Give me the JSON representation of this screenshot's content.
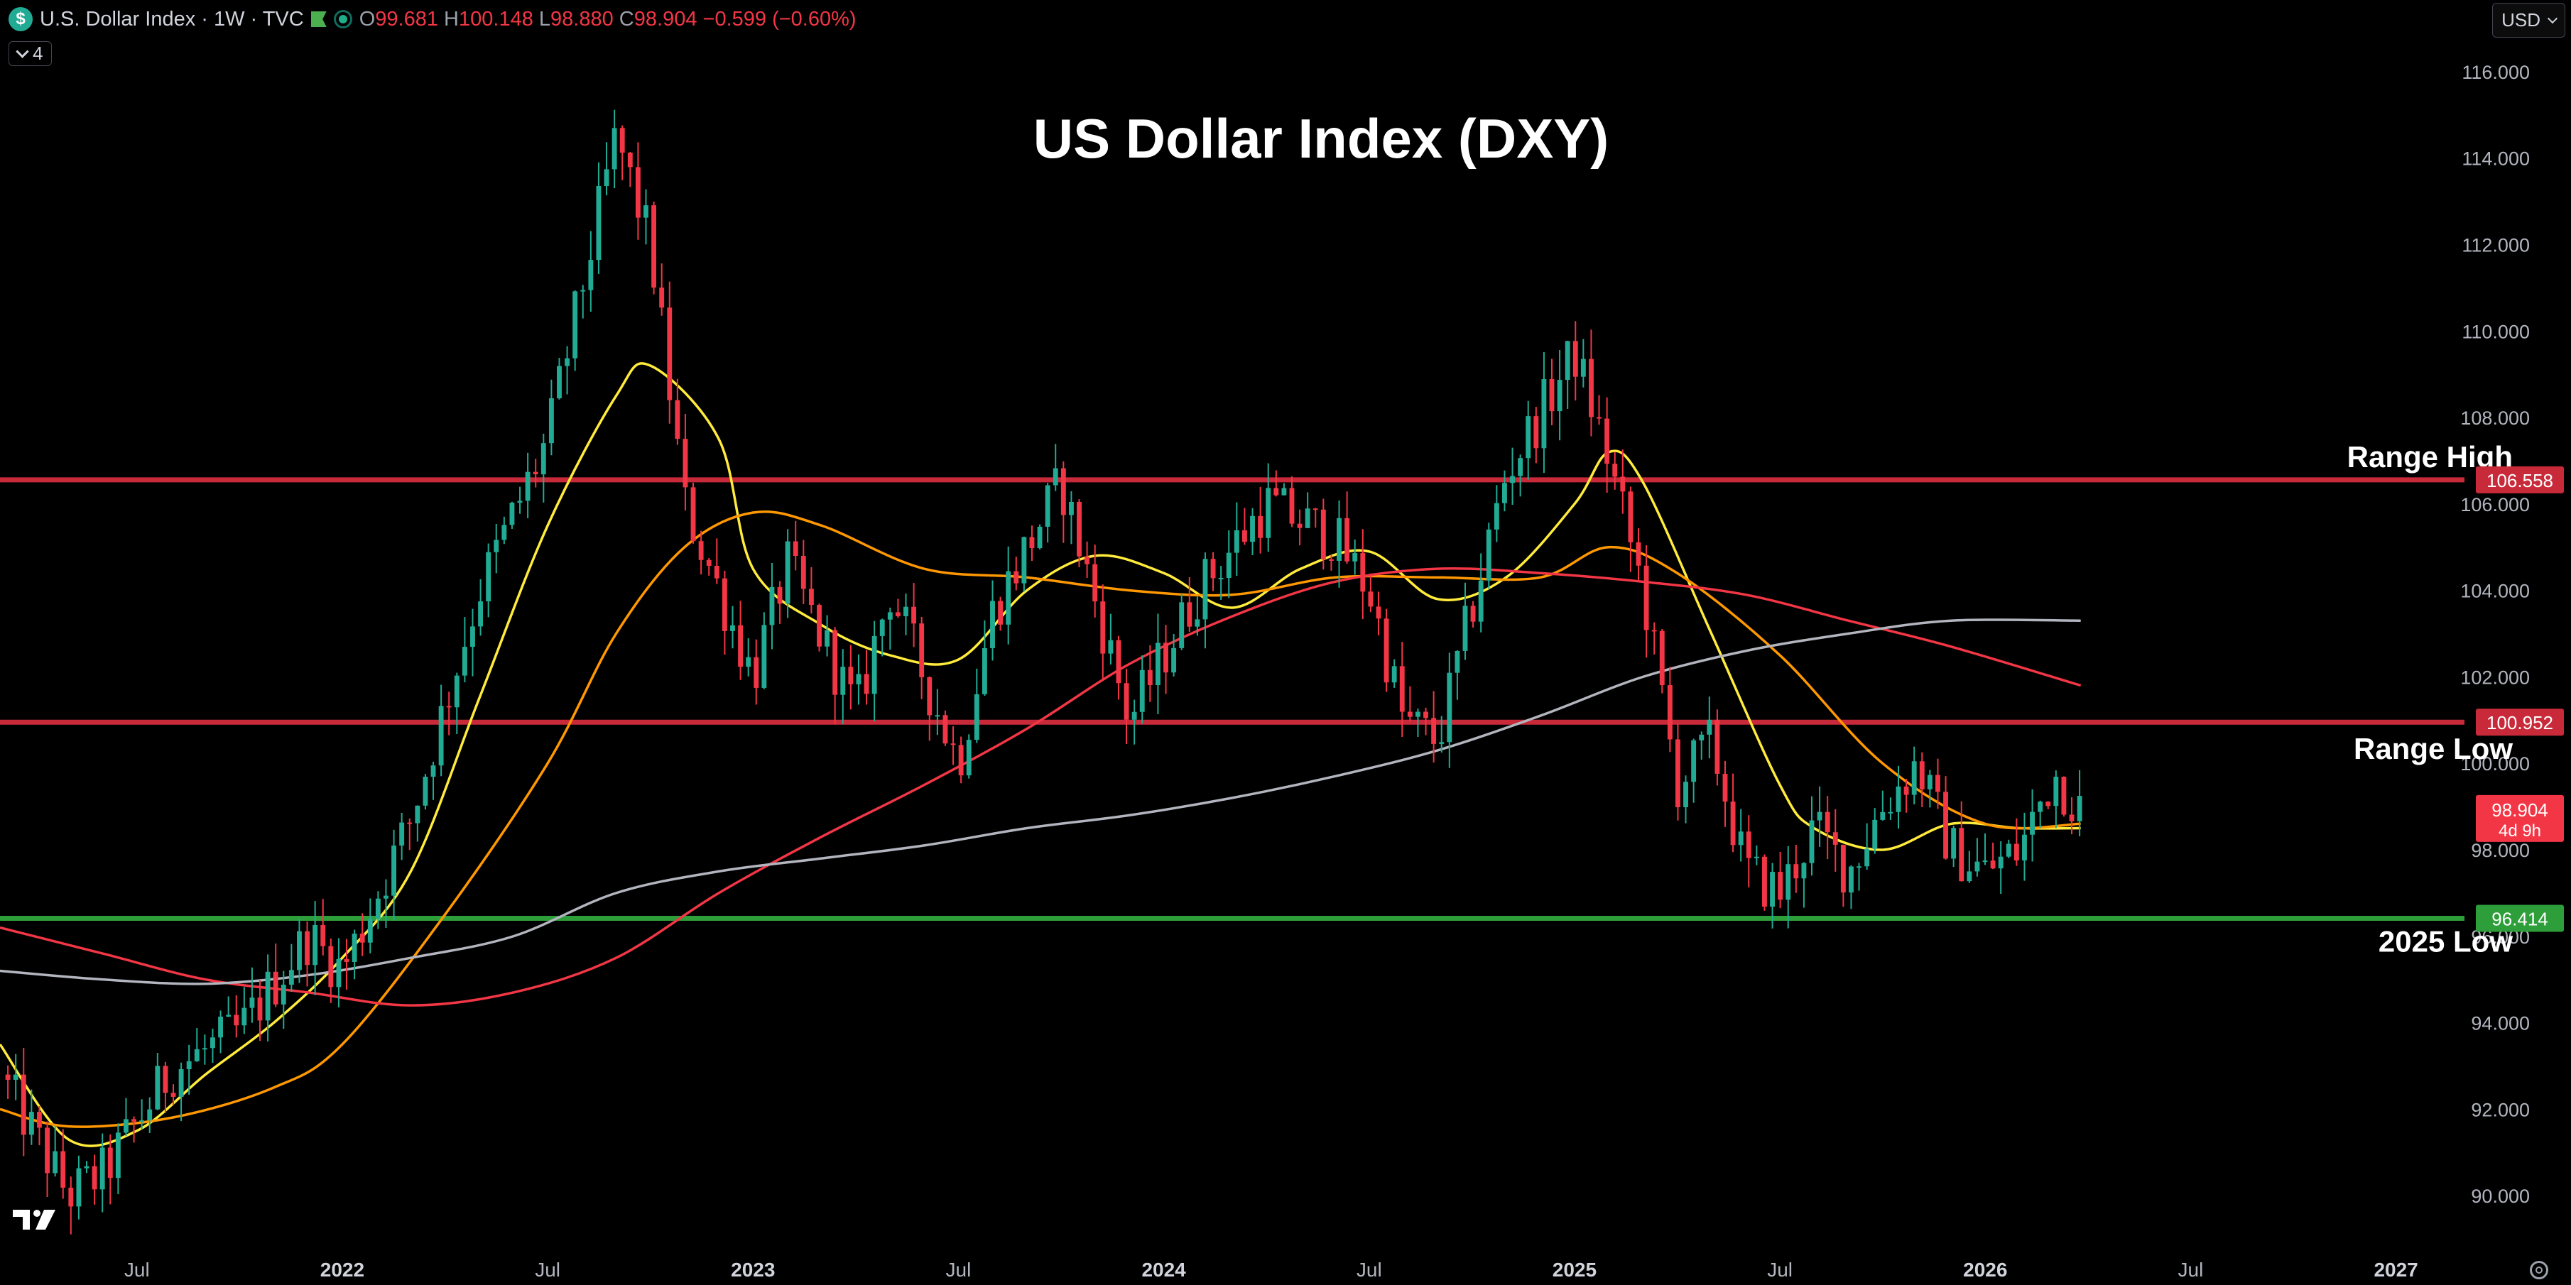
{
  "header": {
    "symbol_letter": "$",
    "title": "U.S. Dollar Index · 1W · TVC",
    "ohlc": [
      {
        "k": "O",
        "v": "99.681"
      },
      {
        "k": "H",
        "v": "100.148"
      },
      {
        "k": "L",
        "v": "98.880"
      },
      {
        "k": "C",
        "v": "98.904"
      }
    ],
    "change": "−0.599 (−0.60%)",
    "indicators_count": "4",
    "currency": "USD"
  },
  "colors": {
    "up": "#22ab94",
    "down": "#f23645",
    "resistance": "#c92a3a",
    "support": "#2e9e3a",
    "ma_fast": "#ffeb3b",
    "ma_mid": "#ff9800",
    "ma_slow": "#f23645",
    "ma_long": "#b2b5be"
  },
  "chart_data": {
    "type": "candlestick",
    "title": "US Dollar Index (DXY)",
    "ylim": [
      89,
      117
    ],
    "y_ticks": [
      "116.000",
      "114.000",
      "112.000",
      "110.000",
      "108.000",
      "106.000",
      "104.000",
      "102.000",
      "100.000",
      "98.000",
      "96.000",
      "94.000",
      "92.000",
      "90.000"
    ],
    "x_ticks": [
      "Jul",
      "2022",
      "Jul",
      "2023",
      "Jul",
      "2024",
      "Jul",
      "2025",
      "Jul",
      "2026",
      "Jul",
      "2027"
    ],
    "x_range": [
      "2021-03",
      "2027-03"
    ],
    "levels": [
      {
        "label": "Range High",
        "value": 106.558,
        "price_label": "106.558",
        "role": "resistance"
      },
      {
        "label": "Range Low",
        "value": 100.952,
        "price_label": "100.952",
        "role": "resistance"
      },
      {
        "label": "2025 Low",
        "value": 96.414,
        "price_label": "96.414",
        "role": "support"
      }
    ],
    "last_price": {
      "value": 98.904,
      "label": "98.904",
      "countdown": "4d 9h"
    },
    "price_anchors": [
      [
        "2021-03",
        92.8
      ],
      [
        "2021-05",
        90.0
      ],
      [
        "2021-06",
        90.5
      ],
      [
        "2021-08",
        92.9
      ],
      [
        "2021-10",
        93.8
      ],
      [
        "2021-12",
        96.0
      ],
      [
        "2022-01",
        95.2
      ],
      [
        "2022-03",
        98.7
      ],
      [
        "2022-05",
        104.0
      ],
      [
        "2022-07",
        107.5
      ],
      [
        "2022-09",
        114.5
      ],
      [
        "2022-10",
        112.0
      ],
      [
        "2022-11",
        106.0
      ],
      [
        "2023-01",
        102.0
      ],
      [
        "2023-02",
        104.6
      ],
      [
        "2023-04",
        101.2
      ],
      [
        "2023-05",
        104.0
      ],
      [
        "2023-07",
        100.0
      ],
      [
        "2023-08",
        103.5
      ],
      [
        "2023-10",
        106.5
      ],
      [
        "2023-12",
        101.0
      ],
      [
        "2024-02",
        104.0
      ],
      [
        "2024-04",
        106.0
      ],
      [
        "2024-06",
        105.2
      ],
      [
        "2024-07",
        104.0
      ],
      [
        "2024-08",
        101.0
      ],
      [
        "2024-09",
        100.5
      ],
      [
        "2024-11",
        106.7
      ],
      [
        "2025-01",
        109.5
      ],
      [
        "2025-02",
        107.0
      ],
      [
        "2025-03",
        104.0
      ],
      [
        "2025-04",
        99.5
      ],
      [
        "2025-05",
        100.5
      ],
      [
        "2025-06",
        97.5
      ],
      [
        "2025-07",
        97.0
      ],
      [
        "2025-08",
        98.5
      ],
      [
        "2025-09",
        97.5
      ],
      [
        "2025-10",
        99.0
      ],
      [
        "2025-11",
        100.0
      ],
      [
        "2025-12",
        98.0
      ],
      [
        "2026-01",
        97.5
      ],
      [
        "2026-02",
        98.0
      ],
      [
        "2026-03",
        99.8
      ],
      [
        "2026-03-25",
        98.9
      ]
    ],
    "moving_averages": [
      {
        "color_key": "ma_fast",
        "points": [
          [
            "2021-03",
            93.5
          ],
          [
            "2021-05",
            91.3
          ],
          [
            "2021-07",
            91.5
          ],
          [
            "2021-09",
            92.8
          ],
          [
            "2021-11",
            94.0
          ],
          [
            "2022-01",
            95.5
          ],
          [
            "2022-03",
            97.5
          ],
          [
            "2022-05",
            101.5
          ],
          [
            "2022-07",
            105.5
          ],
          [
            "2022-09",
            108.5
          ],
          [
            "2022-10",
            109.2
          ],
          [
            "2022-12",
            107.5
          ],
          [
            "2023-01",
            104.5
          ],
          [
            "2023-03",
            103.2
          ],
          [
            "2023-05",
            102.5
          ],
          [
            "2023-07",
            102.4
          ],
          [
            "2023-09",
            104.0
          ],
          [
            "2023-11",
            104.8
          ],
          [
            "2024-01",
            104.4
          ],
          [
            "2024-03",
            103.6
          ],
          [
            "2024-05",
            104.5
          ],
          [
            "2024-07",
            104.9
          ],
          [
            "2024-09",
            103.8
          ],
          [
            "2024-11",
            104.3
          ],
          [
            "2025-01",
            106.0
          ],
          [
            "2025-02",
            107.2
          ],
          [
            "2025-03",
            106.5
          ],
          [
            "2025-05",
            103.0
          ],
          [
            "2025-07",
            99.5
          ],
          [
            "2025-08",
            98.5
          ],
          [
            "2025-10",
            98.0
          ],
          [
            "2025-12",
            98.6
          ],
          [
            "2026-02",
            98.5
          ],
          [
            "2026-03-25",
            98.5
          ]
        ]
      },
      {
        "color_key": "ma_mid",
        "points": [
          [
            "2021-03",
            92.0
          ],
          [
            "2021-05",
            91.6
          ],
          [
            "2021-08",
            91.8
          ],
          [
            "2021-11",
            92.5
          ],
          [
            "2022-01",
            93.5
          ],
          [
            "2022-04",
            96.5
          ],
          [
            "2022-07",
            100.0
          ],
          [
            "2022-09",
            103.0
          ],
          [
            "2022-11",
            105.0
          ],
          [
            "2023-01",
            105.8
          ],
          [
            "2023-03",
            105.5
          ],
          [
            "2023-06",
            104.5
          ],
          [
            "2023-09",
            104.3
          ],
          [
            "2023-12",
            104.0
          ],
          [
            "2024-03",
            103.9
          ],
          [
            "2024-06",
            104.3
          ],
          [
            "2024-09",
            104.3
          ],
          [
            "2024-12",
            104.3
          ],
          [
            "2025-02",
            105.0
          ],
          [
            "2025-04",
            104.4
          ],
          [
            "2025-07",
            102.5
          ],
          [
            "2025-10",
            100.0
          ],
          [
            "2026-01",
            98.6
          ],
          [
            "2026-03-25",
            98.6
          ]
        ]
      },
      {
        "color_key": "ma_slow",
        "points": [
          [
            "2021-03",
            96.2
          ],
          [
            "2021-06",
            95.6
          ],
          [
            "2021-09",
            95.0
          ],
          [
            "2021-12",
            94.7
          ],
          [
            "2022-03",
            94.4
          ],
          [
            "2022-06",
            94.7
          ],
          [
            "2022-09",
            95.5
          ],
          [
            "2022-12",
            97.0
          ],
          [
            "2023-03",
            98.3
          ],
          [
            "2023-06",
            99.5
          ],
          [
            "2023-09",
            100.8
          ],
          [
            "2023-12",
            102.3
          ],
          [
            "2024-03",
            103.4
          ],
          [
            "2024-06",
            104.2
          ],
          [
            "2024-09",
            104.5
          ],
          [
            "2024-12",
            104.4
          ],
          [
            "2025-03",
            104.2
          ],
          [
            "2025-06",
            103.9
          ],
          [
            "2025-09",
            103.3
          ],
          [
            "2025-12",
            102.7
          ],
          [
            "2026-03-25",
            101.8
          ]
        ]
      },
      {
        "color_key": "ma_long",
        "points": [
          [
            "2021-03",
            95.2
          ],
          [
            "2021-06",
            95.0
          ],
          [
            "2021-09",
            94.9
          ],
          [
            "2021-12",
            95.1
          ],
          [
            "2022-03",
            95.5
          ],
          [
            "2022-06",
            96.0
          ],
          [
            "2022-09",
            97.0
          ],
          [
            "2022-12",
            97.5
          ],
          [
            "2023-03",
            97.8
          ],
          [
            "2023-06",
            98.1
          ],
          [
            "2023-09",
            98.5
          ],
          [
            "2023-12",
            98.8
          ],
          [
            "2024-03",
            99.2
          ],
          [
            "2024-06",
            99.7
          ],
          [
            "2024-09",
            100.3
          ],
          [
            "2024-12",
            101.1
          ],
          [
            "2025-03",
            102.0
          ],
          [
            "2025-06",
            102.6
          ],
          [
            "2025-09",
            103.0
          ],
          [
            "2025-12",
            103.3
          ],
          [
            "2026-03-25",
            103.3
          ]
        ]
      }
    ]
  }
}
